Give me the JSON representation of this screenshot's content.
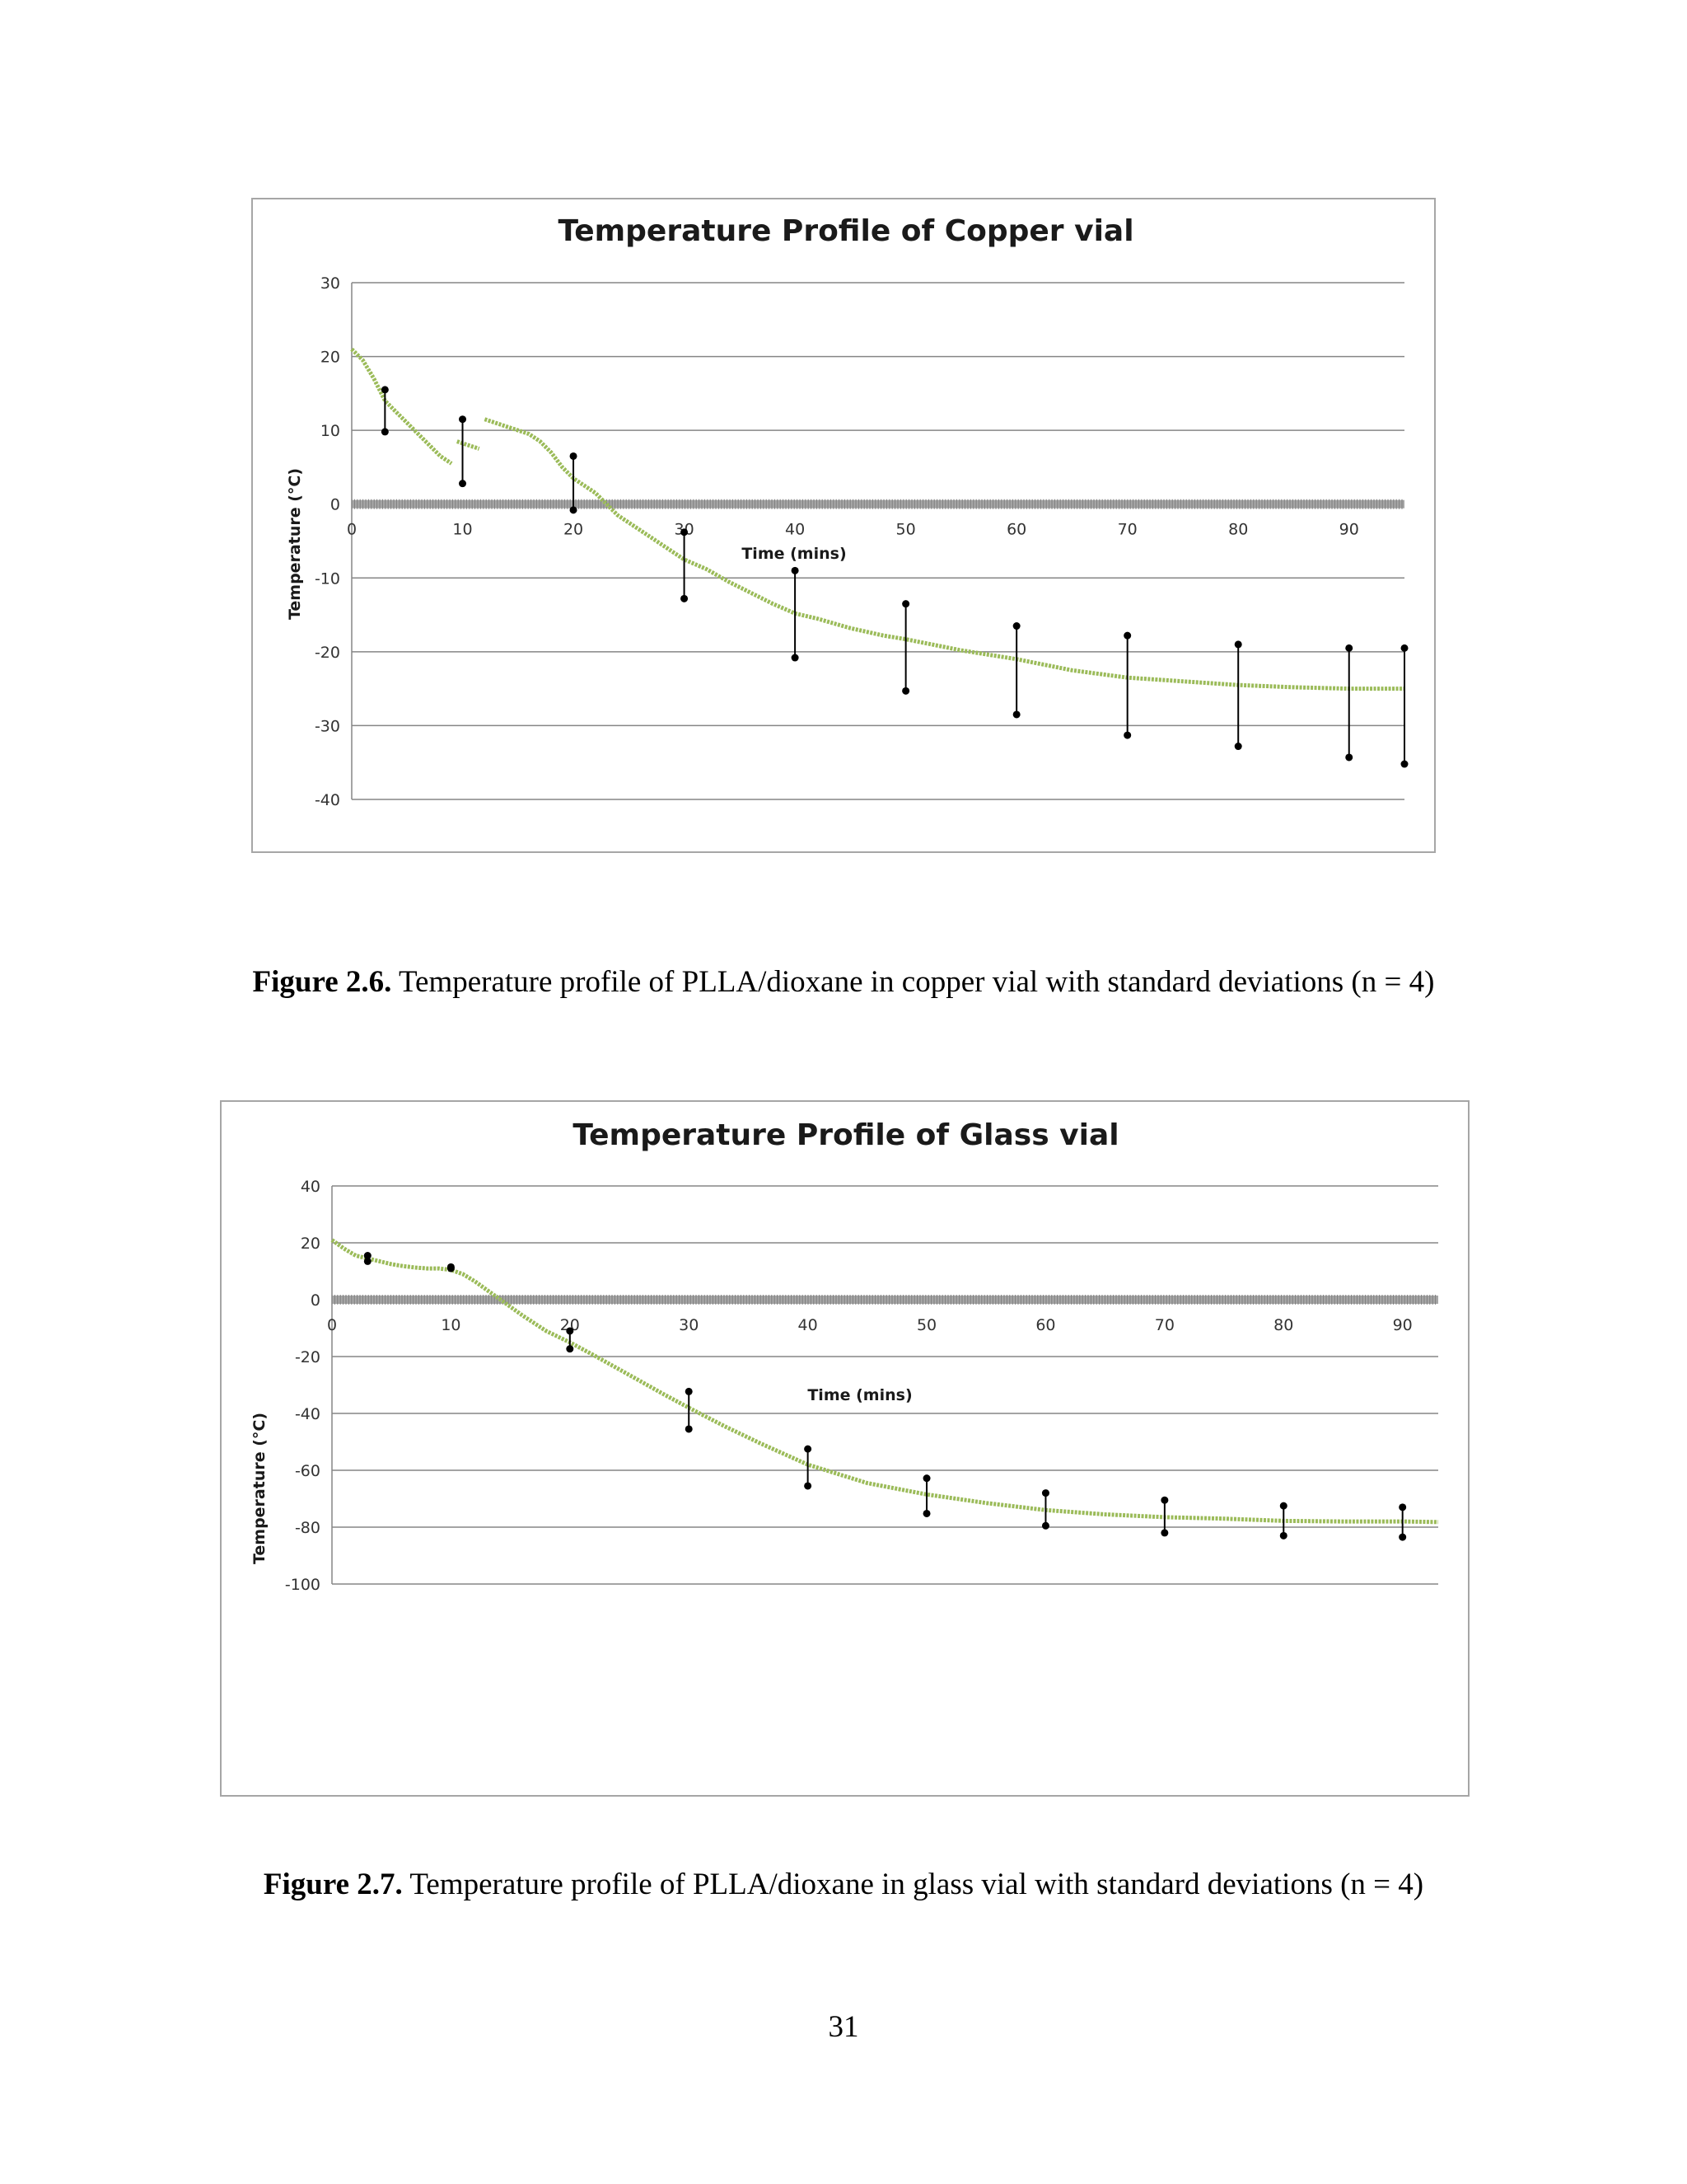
{
  "captions": {
    "fig26_label": "Figure 2.6.",
    "fig26_text": " Temperature profile of PLLA/dioxane in copper vial with standard deviations (n = 4)",
    "fig27_label": "Figure 2.7.",
    "fig27_text": " Temperature profile of PLLA/dioxane in glass vial with standard deviations (n = 4)"
  },
  "page_number": "31",
  "colors": {
    "curve": "#9bbb59",
    "gridline": "#868686",
    "errorbar": "#000000",
    "zero_axis": "#a6a6a6"
  },
  "chart_data": [
    {
      "type": "line",
      "title": "Temperature Profile of Copper vial",
      "xlabel": "Time (mins)",
      "ylabel": "Temperature (°C)",
      "xlim": [
        0,
        95
      ],
      "ylim": [
        -40,
        30
      ],
      "x_ticks": [
        0,
        10,
        20,
        30,
        40,
        50,
        60,
        70,
        80,
        90
      ],
      "y_ticks": [
        30,
        20,
        10,
        0,
        -10,
        -20,
        -30,
        -40
      ],
      "grid": true,
      "legend": "none",
      "series": [
        {
          "segments": [
            {
              "x": [
                0,
                1,
                2,
                3,
                4,
                5,
                6,
                7,
                8,
                9
              ],
              "y": [
                21,
                19.5,
                17,
                14,
                12.5,
                11,
                9.5,
                8,
                6.5,
                5.5
              ]
            },
            {
              "x": [
                9.5,
                10.5,
                11.5
              ],
              "y": [
                8.5,
                8,
                7.5
              ]
            },
            {
              "x": [
                12,
                13,
                14,
                15,
                16,
                17,
                18,
                19,
                20,
                21,
                22,
                23,
                24,
                25,
                26,
                27,
                28,
                29,
                30,
                32,
                34,
                36,
                38,
                40,
                42,
                45,
                48,
                50,
                55,
                60,
                65,
                70,
                75,
                80,
                85,
                90,
                95
              ],
              "y": [
                11.5,
                11,
                10.5,
                10,
                9.5,
                8.5,
                7,
                5,
                3.5,
                2.5,
                1.5,
                0,
                -1.5,
                -2.5,
                -3.5,
                -4.5,
                -5.5,
                -6.5,
                -7.5,
                -8.8,
                -10.5,
                -12,
                -13.5,
                -14.8,
                -15.5,
                -16.8,
                -17.8,
                -18.3,
                -19.8,
                -21,
                -22.5,
                -23.5,
                -24,
                -24.5,
                -24.8,
                -25,
                -25
              ]
            }
          ]
        }
      ],
      "error_bars": [
        {
          "x": 3,
          "low": 9.8,
          "high": 15.5
        },
        {
          "x": 10,
          "low": 2.8,
          "high": 11.5
        },
        {
          "x": 20,
          "low": -0.8,
          "high": 6.5
        },
        {
          "x": 30,
          "low": -12.8,
          "high": -3.8
        },
        {
          "x": 40,
          "low": -20.8,
          "high": -9
        },
        {
          "x": 50,
          "low": -25.3,
          "high": -13.5
        },
        {
          "x": 60,
          "low": -28.5,
          "high": -16.5
        },
        {
          "x": 70,
          "low": -31.3,
          "high": -17.8
        },
        {
          "x": 80,
          "low": -32.8,
          "high": -19
        },
        {
          "x": 90,
          "low": -34.3,
          "high": -19.5
        },
        {
          "x": 95,
          "low": -35.2,
          "high": -19.5
        }
      ]
    },
    {
      "type": "line",
      "title": "Temperature Profile of Glass vial",
      "xlabel": "Time (mins)",
      "ylabel": "Temperature (°C)",
      "xlim": [
        0,
        93
      ],
      "ylim": [
        -100,
        40
      ],
      "x_ticks": [
        0,
        10,
        20,
        30,
        40,
        50,
        60,
        70,
        80,
        90
      ],
      "y_ticks": [
        40,
        20,
        0,
        -20,
        -40,
        -60,
        -80,
        -100
      ],
      "grid": true,
      "legend": "none",
      "series": [
        {
          "segments": [
            {
              "x": [
                0,
                1,
                2,
                3,
                4,
                5,
                6,
                7,
                8,
                9,
                10,
                11,
                12,
                13,
                14,
                15,
                16,
                18,
                20,
                22,
                25,
                28,
                30,
                33,
                36,
                40,
                45,
                50,
                55,
                60,
                65,
                70,
                75,
                80,
                85,
                90,
                93
              ],
              "y": [
                21,
                18,
                15.5,
                14.5,
                13.5,
                12.5,
                11.8,
                11.3,
                11,
                11,
                10.5,
                9,
                6.5,
                3.5,
                0.5,
                -2.5,
                -5.5,
                -11,
                -15,
                -19.5,
                -26.5,
                -33.5,
                -38,
                -44.5,
                -50.5,
                -58,
                -64.5,
                -68.5,
                -71.5,
                -74,
                -75.5,
                -76.5,
                -77,
                -77.8,
                -78,
                -78,
                -78.2
              ]
            }
          ]
        }
      ],
      "error_bars": [
        {
          "x": 3,
          "low": 13.5,
          "high": 15.5
        },
        {
          "x": 10,
          "low": 11,
          "high": 11.5
        },
        {
          "x": 20,
          "low": -17.3,
          "high": -11
        },
        {
          "x": 30,
          "low": -45.5,
          "high": -32.3
        },
        {
          "x": 40,
          "low": -65.5,
          "high": -52.5
        },
        {
          "x": 50,
          "low": -75.2,
          "high": -62.8
        },
        {
          "x": 60,
          "low": -79.5,
          "high": -68
        },
        {
          "x": 70,
          "low": -82,
          "high": -70.5
        },
        {
          "x": 80,
          "low": -83,
          "high": -72.5
        },
        {
          "x": 90,
          "low": -83.5,
          "high": -73
        }
      ]
    }
  ]
}
